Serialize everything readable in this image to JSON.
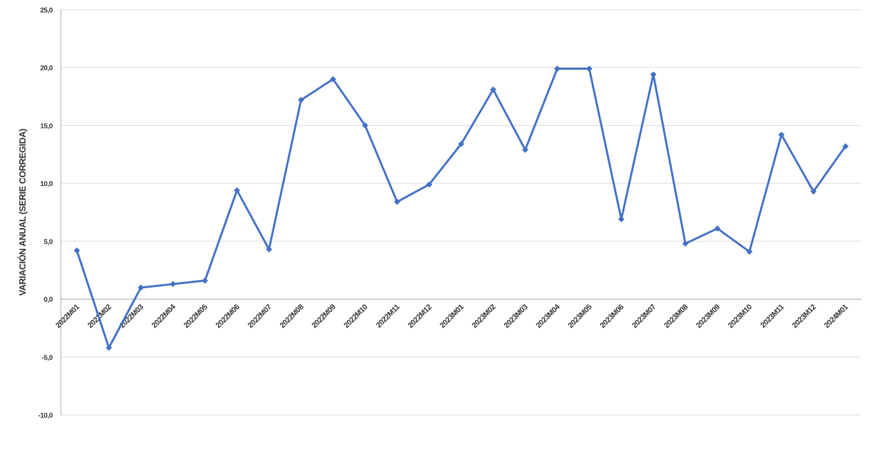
{
  "chart_data": {
    "type": "line",
    "y_label": "VARIACIÓN ANUAL (SERIE CORREGIDA)",
    "categories": [
      "2022M01",
      "2022M02",
      "2022M03",
      "2022M04",
      "2022M05",
      "2022M06",
      "2022M07",
      "2022M08",
      "2022M09",
      "2022M10",
      "2022M11",
      "2022M12",
      "2023M01",
      "2023M02",
      "2023M03",
      "2023M04",
      "2023M05",
      "2023M06",
      "2023M07",
      "2023M08",
      "2023M09",
      "2023M10",
      "2023M11",
      "2023M12",
      "2024M01"
    ],
    "series": [
      {
        "color": "#4472c4",
        "values": [
          4.2,
          -4.2,
          1.0,
          1.3,
          1.6,
          9.4,
          4.3,
          17.2,
          19.0,
          15.0,
          8.4,
          9.9,
          13.4,
          18.1,
          12.9,
          19.9,
          19.9,
          6.9,
          19.4,
          4.8,
          6.1,
          4.1,
          14.2,
          9.3,
          13.2
        ]
      }
    ],
    "ylim": [
      -10,
      25
    ],
    "yticks": [
      {
        "value": -10,
        "label": "-10,0"
      },
      {
        "value": -5,
        "label": "-5,0"
      },
      {
        "value": 0,
        "label": "0,0"
      },
      {
        "value": 5,
        "label": "5,0"
      },
      {
        "value": 10,
        "label": "10,0"
      },
      {
        "value": 15,
        "label": "15,0"
      },
      {
        "value": 20,
        "label": "20,0"
      },
      {
        "value": 25,
        "label": "25,0"
      }
    ],
    "grid": true
  }
}
